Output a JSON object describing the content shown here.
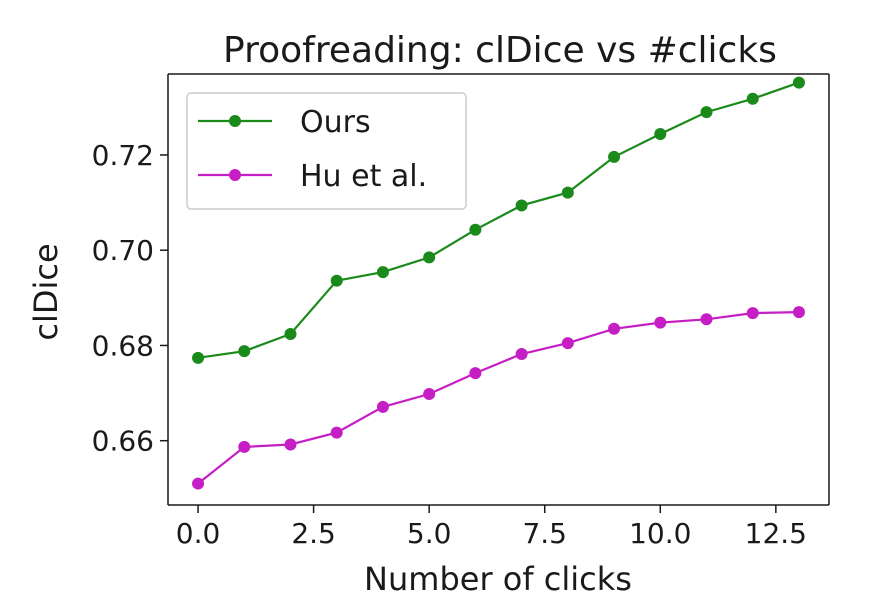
{
  "chart_data": {
    "type": "line",
    "title": "Proofreading: clDice vs #clicks",
    "xlabel": "Number of clicks",
    "ylabel": "clDice",
    "xlim": [
      -0.65,
      13.65
    ],
    "ylim": [
      0.6465,
      0.737
    ],
    "x_ticks": [
      0.0,
      2.5,
      5.0,
      7.5,
      10.0,
      12.5
    ],
    "x_tick_labels": [
      "0.0",
      "2.5",
      "5.0",
      "7.5",
      "10.0",
      "12.5"
    ],
    "y_ticks": [
      0.66,
      0.68,
      0.7,
      0.72
    ],
    "y_tick_labels": [
      "0.66",
      "0.68",
      "0.70",
      "0.72"
    ],
    "grid": false,
    "legend_position": "top-left",
    "x": [
      0,
      1,
      2,
      3,
      4,
      5,
      6,
      7,
      8,
      9,
      10,
      11,
      12,
      13
    ],
    "series": [
      {
        "name": "Ours",
        "color": "#1a8a1a",
        "marker": "circle",
        "values": [
          0.6774,
          0.6788,
          0.6824,
          0.6936,
          0.6954,
          0.6985,
          0.7043,
          0.7094,
          0.7121,
          0.7196,
          0.7244,
          0.729,
          0.7318,
          0.7352
        ]
      },
      {
        "name": "Hu et al.",
        "color": "#c51ec5",
        "marker": "circle",
        "values": [
          0.651,
          0.6587,
          0.6592,
          0.6617,
          0.6671,
          0.6698,
          0.6742,
          0.6782,
          0.6805,
          0.6835,
          0.6848,
          0.6855,
          0.6868,
          0.687
        ]
      }
    ]
  }
}
